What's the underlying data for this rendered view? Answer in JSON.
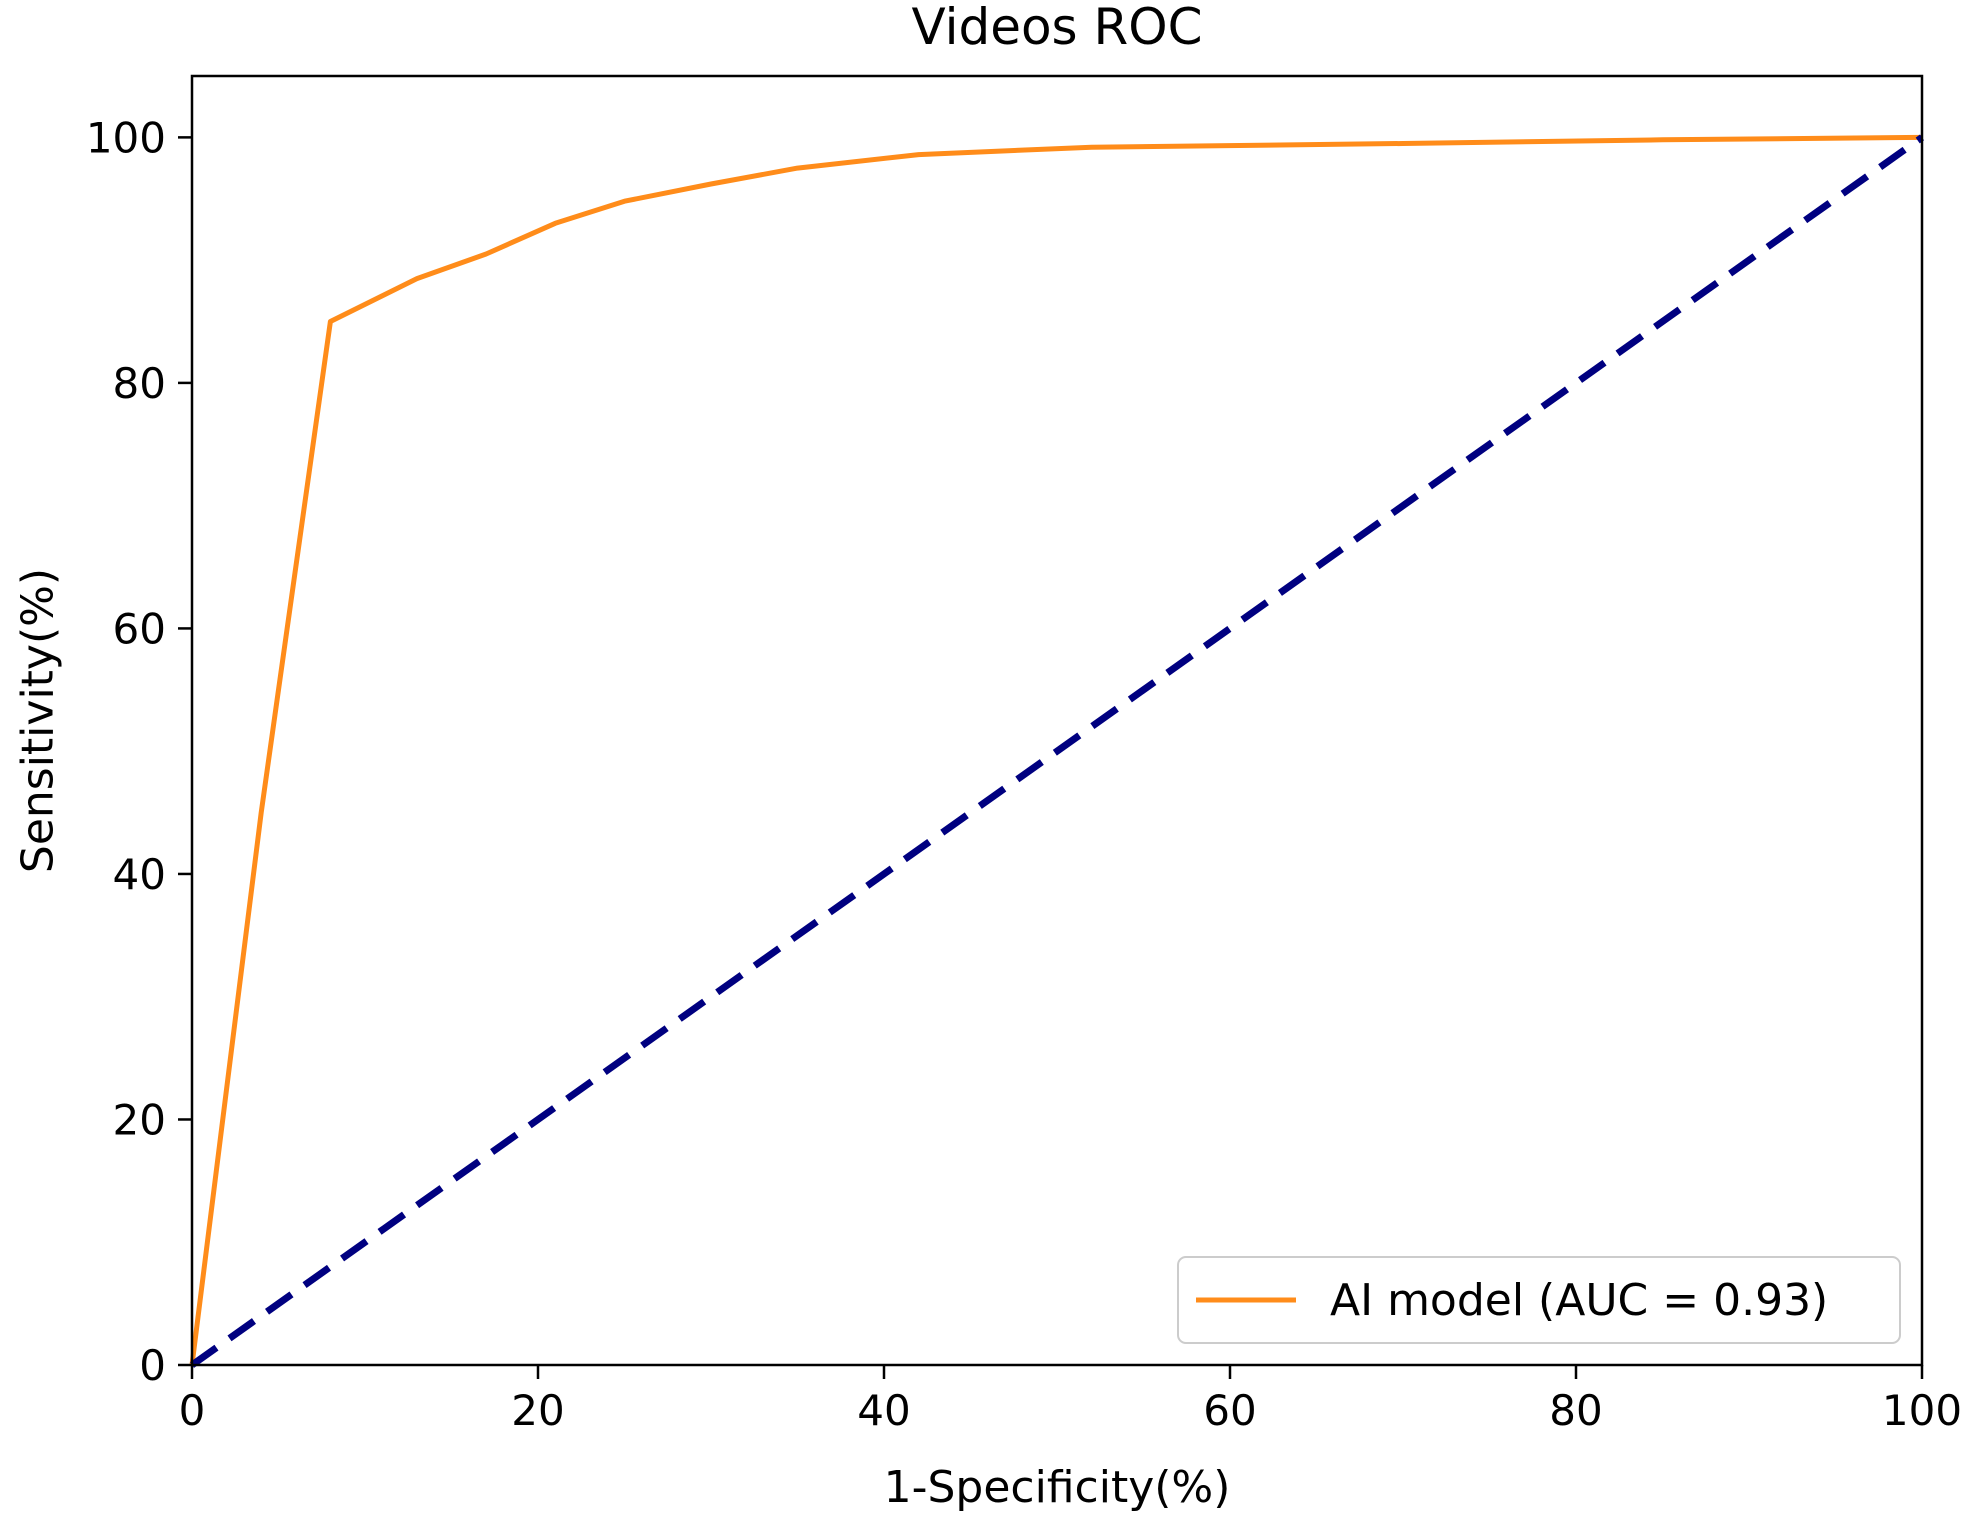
{
  "chart_data": {
    "type": "line",
    "title": "Videos ROC",
    "xlabel": "1-Specificity(%)",
    "ylabel": "Sensitivity(%)",
    "xlim": [
      0,
      100
    ],
    "ylim": [
      0,
      105
    ],
    "xticks": [
      0,
      20,
      40,
      60,
      80,
      100
    ],
    "yticks": [
      0,
      20,
      40,
      60,
      80,
      100
    ],
    "grid": false,
    "legend_position": "lower-right",
    "series": [
      {
        "name": "AI model (AUC = 0.93)",
        "color": "#ff8c1a",
        "style": "solid",
        "x": [
          0,
          4,
          8,
          13,
          17,
          21,
          25,
          30,
          35,
          42,
          52,
          70,
          85,
          100
        ],
        "y": [
          0,
          45,
          85,
          88.5,
          90.5,
          93,
          94.8,
          96.2,
          97.5,
          98.6,
          99.2,
          99.5,
          99.8,
          100
        ]
      },
      {
        "name": "",
        "color": "#000080",
        "style": "dashed",
        "x": [
          0,
          100
        ],
        "y": [
          0,
          100
        ]
      }
    ]
  }
}
